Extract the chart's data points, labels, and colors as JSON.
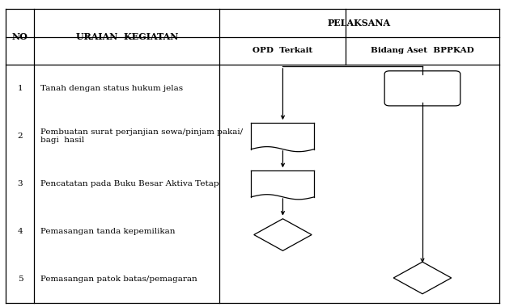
{
  "bg_color": "#ffffff",
  "line_color": "#000000",
  "header_pelaksana": "PELAKSANA",
  "header_no": "NO",
  "header_uraian": "URAIAN  KEGIATAN",
  "header_opd": "OPD  Terkait",
  "header_bidang": "Bidang Aset  BPPKAD",
  "rows": [
    {
      "no": "1",
      "text": "Tanah dengan status hukum jelas"
    },
    {
      "no": "2",
      "text": "Pembuatan surat perjanjian sewa/pinjam pakai/\nbagi  hasil"
    },
    {
      "no": "3",
      "text": "Pencatatan pada Buku Besar Aktiva Tetap"
    },
    {
      "no": "4",
      "text": "Pemasangan tanda kepemilikan"
    },
    {
      "no": "5",
      "text": "Pemasangan patok batas/pemagaran"
    }
  ],
  "figsize": [
    6.24,
    3.8
  ],
  "dpi": 100,
  "c0": 0.012,
  "c1": 0.068,
  "c2": 0.435,
  "c3": 0.685,
  "c4": 0.988,
  "r0": 0.97,
  "r1": 0.88,
  "r2": 0.79,
  "r7": 0.012
}
